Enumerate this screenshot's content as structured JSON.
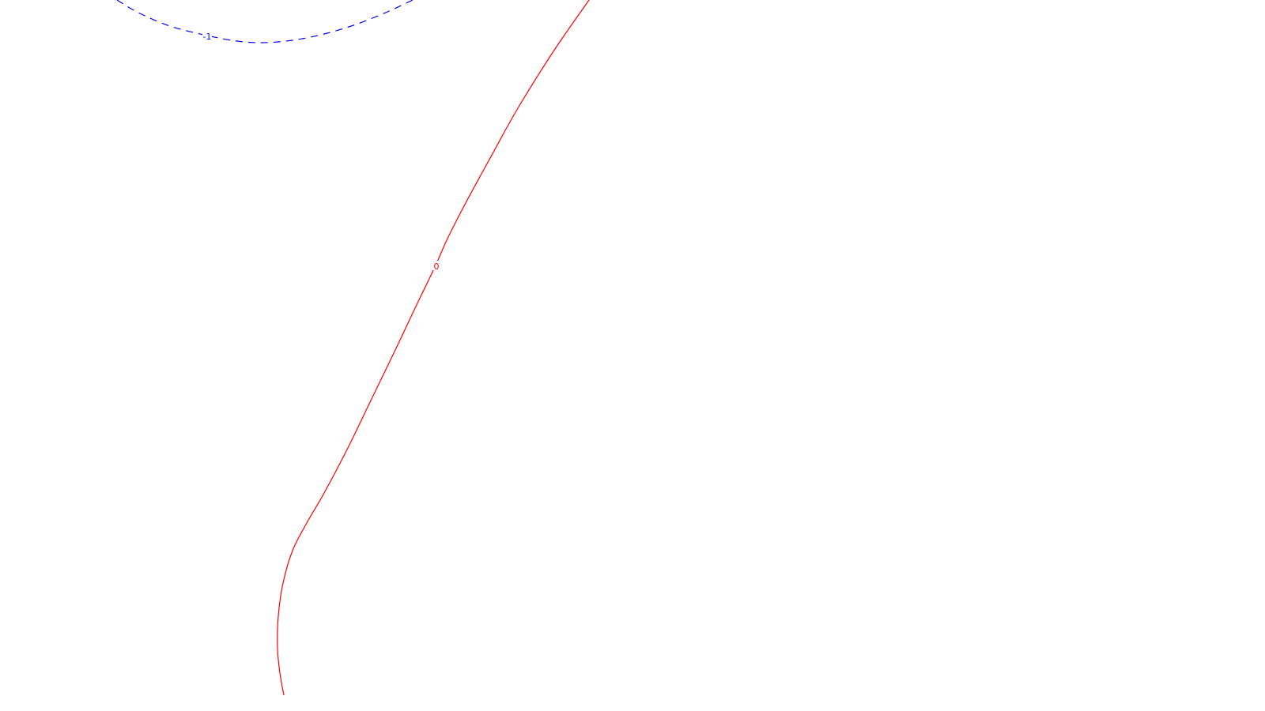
{
  "chart_data": {
    "type": "line",
    "title": "",
    "xlabel": "",
    "ylabel": "",
    "grid": false,
    "legend": "none",
    "series": [
      {
        "level_label": "0",
        "color": "#ff0000",
        "style": "solid",
        "points": [
          [
            745,
            0
          ],
          [
            700,
            65
          ],
          [
            655,
            137
          ],
          [
            620,
            200
          ],
          [
            590,
            255
          ],
          [
            566,
            302
          ],
          [
            550,
            338
          ],
          [
            525,
            390
          ],
          [
            500,
            443
          ],
          [
            470,
            505
          ],
          [
            440,
            567
          ],
          [
            410,
            624
          ],
          [
            388,
            662
          ],
          [
            370,
            697
          ],
          [
            358,
            738
          ],
          [
            352,
            780
          ],
          [
            351,
            820
          ],
          [
            354,
            852
          ],
          [
            359,
            880
          ]
        ],
        "label_at": [
          552,
          337
        ]
      },
      {
        "level_label": "-1",
        "color": "#0000ff",
        "style": "dashed",
        "points": [
          [
            148,
            0
          ],
          [
            175,
            16
          ],
          [
            215,
            33
          ],
          [
            262,
            45
          ],
          [
            300,
            52
          ],
          [
            332,
            54
          ],
          [
            370,
            51
          ],
          [
            410,
            43
          ],
          [
            450,
            31
          ],
          [
            490,
            15
          ],
          [
            522,
            0
          ]
        ],
        "label_at": [
          262,
          46
        ]
      }
    ]
  }
}
